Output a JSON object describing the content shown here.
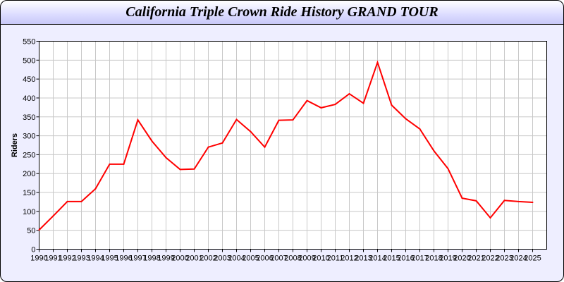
{
  "chart_data": {
    "type": "line",
    "title": "California Triple Crown Ride History GRAND TOUR",
    "xlabel": "",
    "ylabel": "Riders",
    "xlim": [
      1990,
      2026
    ],
    "ylim": [
      0,
      550
    ],
    "yticks": [
      0,
      50,
      100,
      150,
      200,
      250,
      300,
      350,
      400,
      450,
      500,
      550
    ],
    "grid": true,
    "line_color": "#ff0000",
    "x": [
      1990,
      1991,
      1992,
      1993,
      1994,
      1995,
      1996,
      1997,
      1998,
      1999,
      2000,
      2001,
      2002,
      2003,
      2004,
      2005,
      2006,
      2007,
      2008,
      2009,
      2010,
      2011,
      2012,
      2013,
      2014,
      2015,
      2016,
      2017,
      2018,
      2019,
      2020,
      2021,
      2022,
      2023,
      2024,
      2025
    ],
    "values": [
      51,
      88,
      126,
      126,
      160,
      225,
      225,
      342,
      286,
      242,
      211,
      212,
      270,
      281,
      343,
      311,
      270,
      341,
      342,
      393,
      374,
      383,
      411,
      386,
      494,
      381,
      345,
      318,
      260,
      213,
      135,
      128,
      83,
      129,
      126,
      124
    ]
  }
}
